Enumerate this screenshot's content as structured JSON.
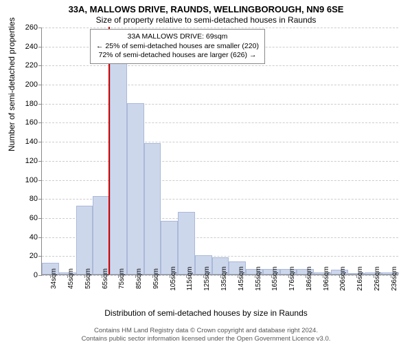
{
  "title_line1": "33A, MALLOWS DRIVE, RAUNDS, WELLINGBOROUGH, NN9 6SE",
  "title_line2": "Size of property relative to semi-detached houses in Raunds",
  "ylabel": "Number of semi-detached properties",
  "xlabel": "Distribution of semi-detached houses by size in Raunds",
  "annotation": {
    "line1": "33A MALLOWS DRIVE: 69sqm",
    "line2": "← 25% of semi-detached houses are smaller (220)",
    "line3": "72% of semi-detached houses are larger (626) →"
  },
  "footer_line1": "Contains HM Land Registry data © Crown copyright and database right 2024.",
  "footer_line2": "Contains public sector information licensed under the Open Government Licence v3.0.",
  "chart": {
    "type": "histogram",
    "ylim": [
      0,
      260
    ],
    "ytick_step": 20,
    "x_start": 30,
    "x_end": 240,
    "x_bin_width": 10,
    "xtick_labels": [
      "34sqm",
      "45sqm",
      "55sqm",
      "65sqm",
      "75sqm",
      "85sqm",
      "95sqm",
      "105sqm",
      "115sqm",
      "125sqm",
      "135sqm",
      "145sqm",
      "155sqm",
      "165sqm",
      "176sqm",
      "186sqm",
      "196sqm",
      "206sqm",
      "216sqm",
      "226sqm",
      "236sqm"
    ],
    "bars": [
      {
        "x": 30,
        "value": 12
      },
      {
        "x": 40,
        "value": 2
      },
      {
        "x": 50,
        "value": 72
      },
      {
        "x": 60,
        "value": 82
      },
      {
        "x": 70,
        "value": 222
      },
      {
        "x": 80,
        "value": 180
      },
      {
        "x": 90,
        "value": 138
      },
      {
        "x": 100,
        "value": 56
      },
      {
        "x": 110,
        "value": 66
      },
      {
        "x": 120,
        "value": 20
      },
      {
        "x": 130,
        "value": 18
      },
      {
        "x": 140,
        "value": 14
      },
      {
        "x": 150,
        "value": 6
      },
      {
        "x": 160,
        "value": 6
      },
      {
        "x": 170,
        "value": 6
      },
      {
        "x": 180,
        "value": 6
      },
      {
        "x": 190,
        "value": 2
      },
      {
        "x": 200,
        "value": 5
      },
      {
        "x": 210,
        "value": 0
      },
      {
        "x": 220,
        "value": 2
      },
      {
        "x": 230,
        "value": 2
      }
    ],
    "marker_x": 69,
    "bar_fill": "#cdd7ec",
    "bar_stroke": "#aab8d8",
    "marker_color": "#d00000",
    "grid_color": "#cccccc",
    "background": "#ffffff",
    "title_fontsize": 13,
    "label_fontsize": 12,
    "tick_fontsize": 11
  }
}
